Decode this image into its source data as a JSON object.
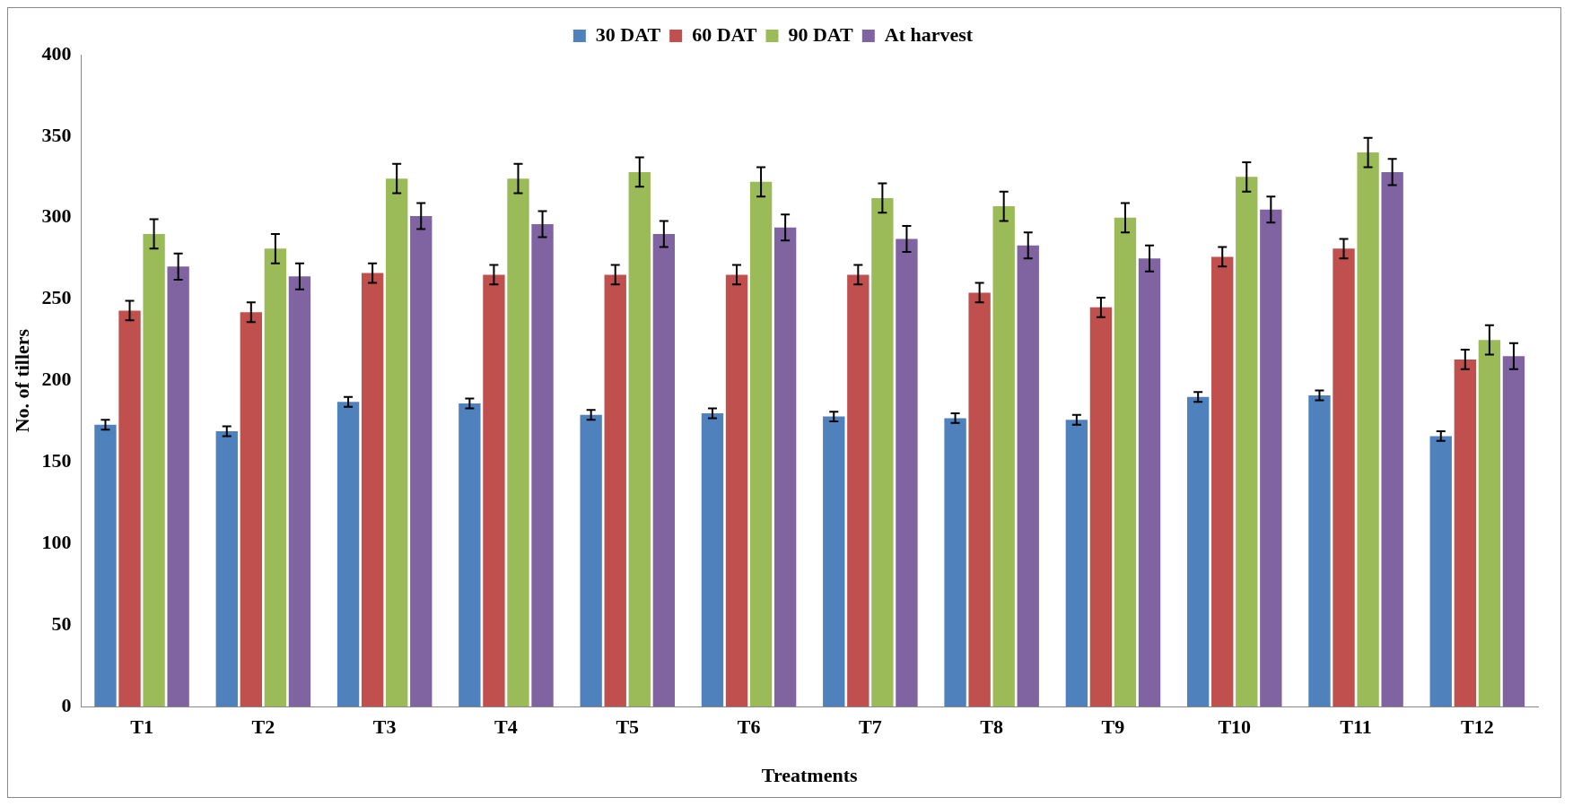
{
  "chart_data": {
    "type": "bar",
    "xlabel": "Treatments",
    "ylabel": "No. of tillers",
    "categories": [
      "T1",
      "T2",
      "T3",
      "T4",
      "T5",
      "T6",
      "T7",
      "T8",
      "T9",
      "T10",
      "T11",
      "T12"
    ],
    "series": [
      {
        "name": "30 DAT",
        "color": "#4f81bd",
        "values": [
          173,
          169,
          187,
          186,
          179,
          180,
          178,
          177,
          176,
          190,
          191,
          166
        ],
        "errors": [
          3,
          3,
          3,
          3,
          3,
          3,
          3,
          3,
          3,
          3,
          3,
          3
        ]
      },
      {
        "name": "60 DAT",
        "color": "#c0504d",
        "values": [
          243,
          242,
          266,
          265,
          265,
          265,
          265,
          254,
          245,
          276,
          281,
          213
        ],
        "errors": [
          6,
          6,
          6,
          6,
          6,
          6,
          6,
          6,
          6,
          6,
          6,
          6
        ]
      },
      {
        "name": "90 DAT",
        "color": "#9bbb59",
        "values": [
          290,
          281,
          324,
          324,
          328,
          322,
          312,
          307,
          300,
          325,
          340,
          225
        ],
        "errors": [
          9,
          9,
          9,
          9,
          9,
          9,
          9,
          9,
          9,
          9,
          9,
          9
        ]
      },
      {
        "name": "At harvest",
        "color": "#8064a2",
        "values": [
          270,
          264,
          301,
          296,
          290,
          294,
          287,
          283,
          275,
          305,
          328,
          215
        ],
        "errors": [
          8,
          8,
          8,
          8,
          8,
          8,
          8,
          8,
          8,
          8,
          8,
          8
        ]
      }
    ],
    "ylim": [
      0,
      400
    ],
    "yticks": [
      0,
      50,
      100,
      150,
      200,
      250,
      300,
      350,
      400
    ],
    "grid": false,
    "legend": "top"
  }
}
